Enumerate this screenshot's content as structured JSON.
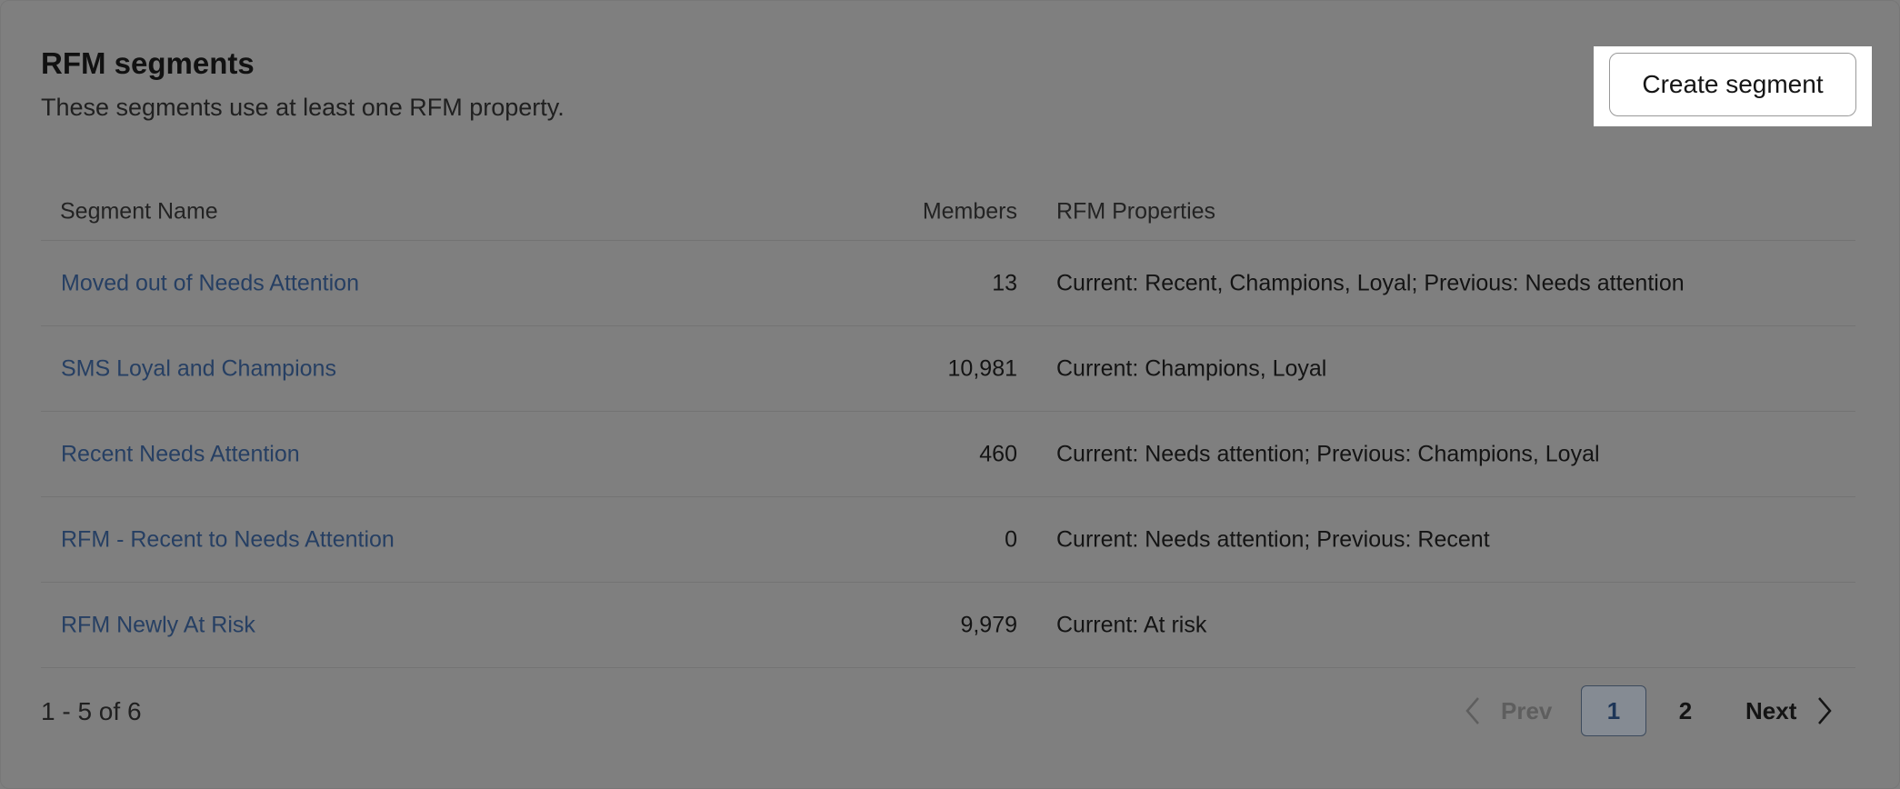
{
  "header": {
    "title": "RFM segments",
    "subtitle": "These segments use at least one RFM property.",
    "create_label": "Create segment"
  },
  "table": {
    "columns": [
      "Segment Name",
      "Members",
      "RFM Properties"
    ],
    "rows": [
      {
        "name": "Moved out of Needs Attention",
        "members": "13",
        "properties": "Current: Recent, Champions, Loyal; Previous: Needs attention"
      },
      {
        "name": "SMS Loyal and Champions",
        "members": "10,981",
        "properties": "Current: Champions, Loyal"
      },
      {
        "name": "Recent Needs Attention",
        "members": "460",
        "properties": "Current: Needs attention; Previous: Champions, Loyal"
      },
      {
        "name": "RFM - Recent to Needs Attention",
        "members": "0",
        "properties": "Current: Needs attention; Previous: Recent"
      },
      {
        "name": "RFM Newly At Risk",
        "members": "9,979",
        "properties": "Current: At risk"
      }
    ]
  },
  "pagination": {
    "range": "1 - 5 of 6",
    "prev": "Prev",
    "next": "Next",
    "pages": [
      "1",
      "2"
    ],
    "current": "1"
  }
}
